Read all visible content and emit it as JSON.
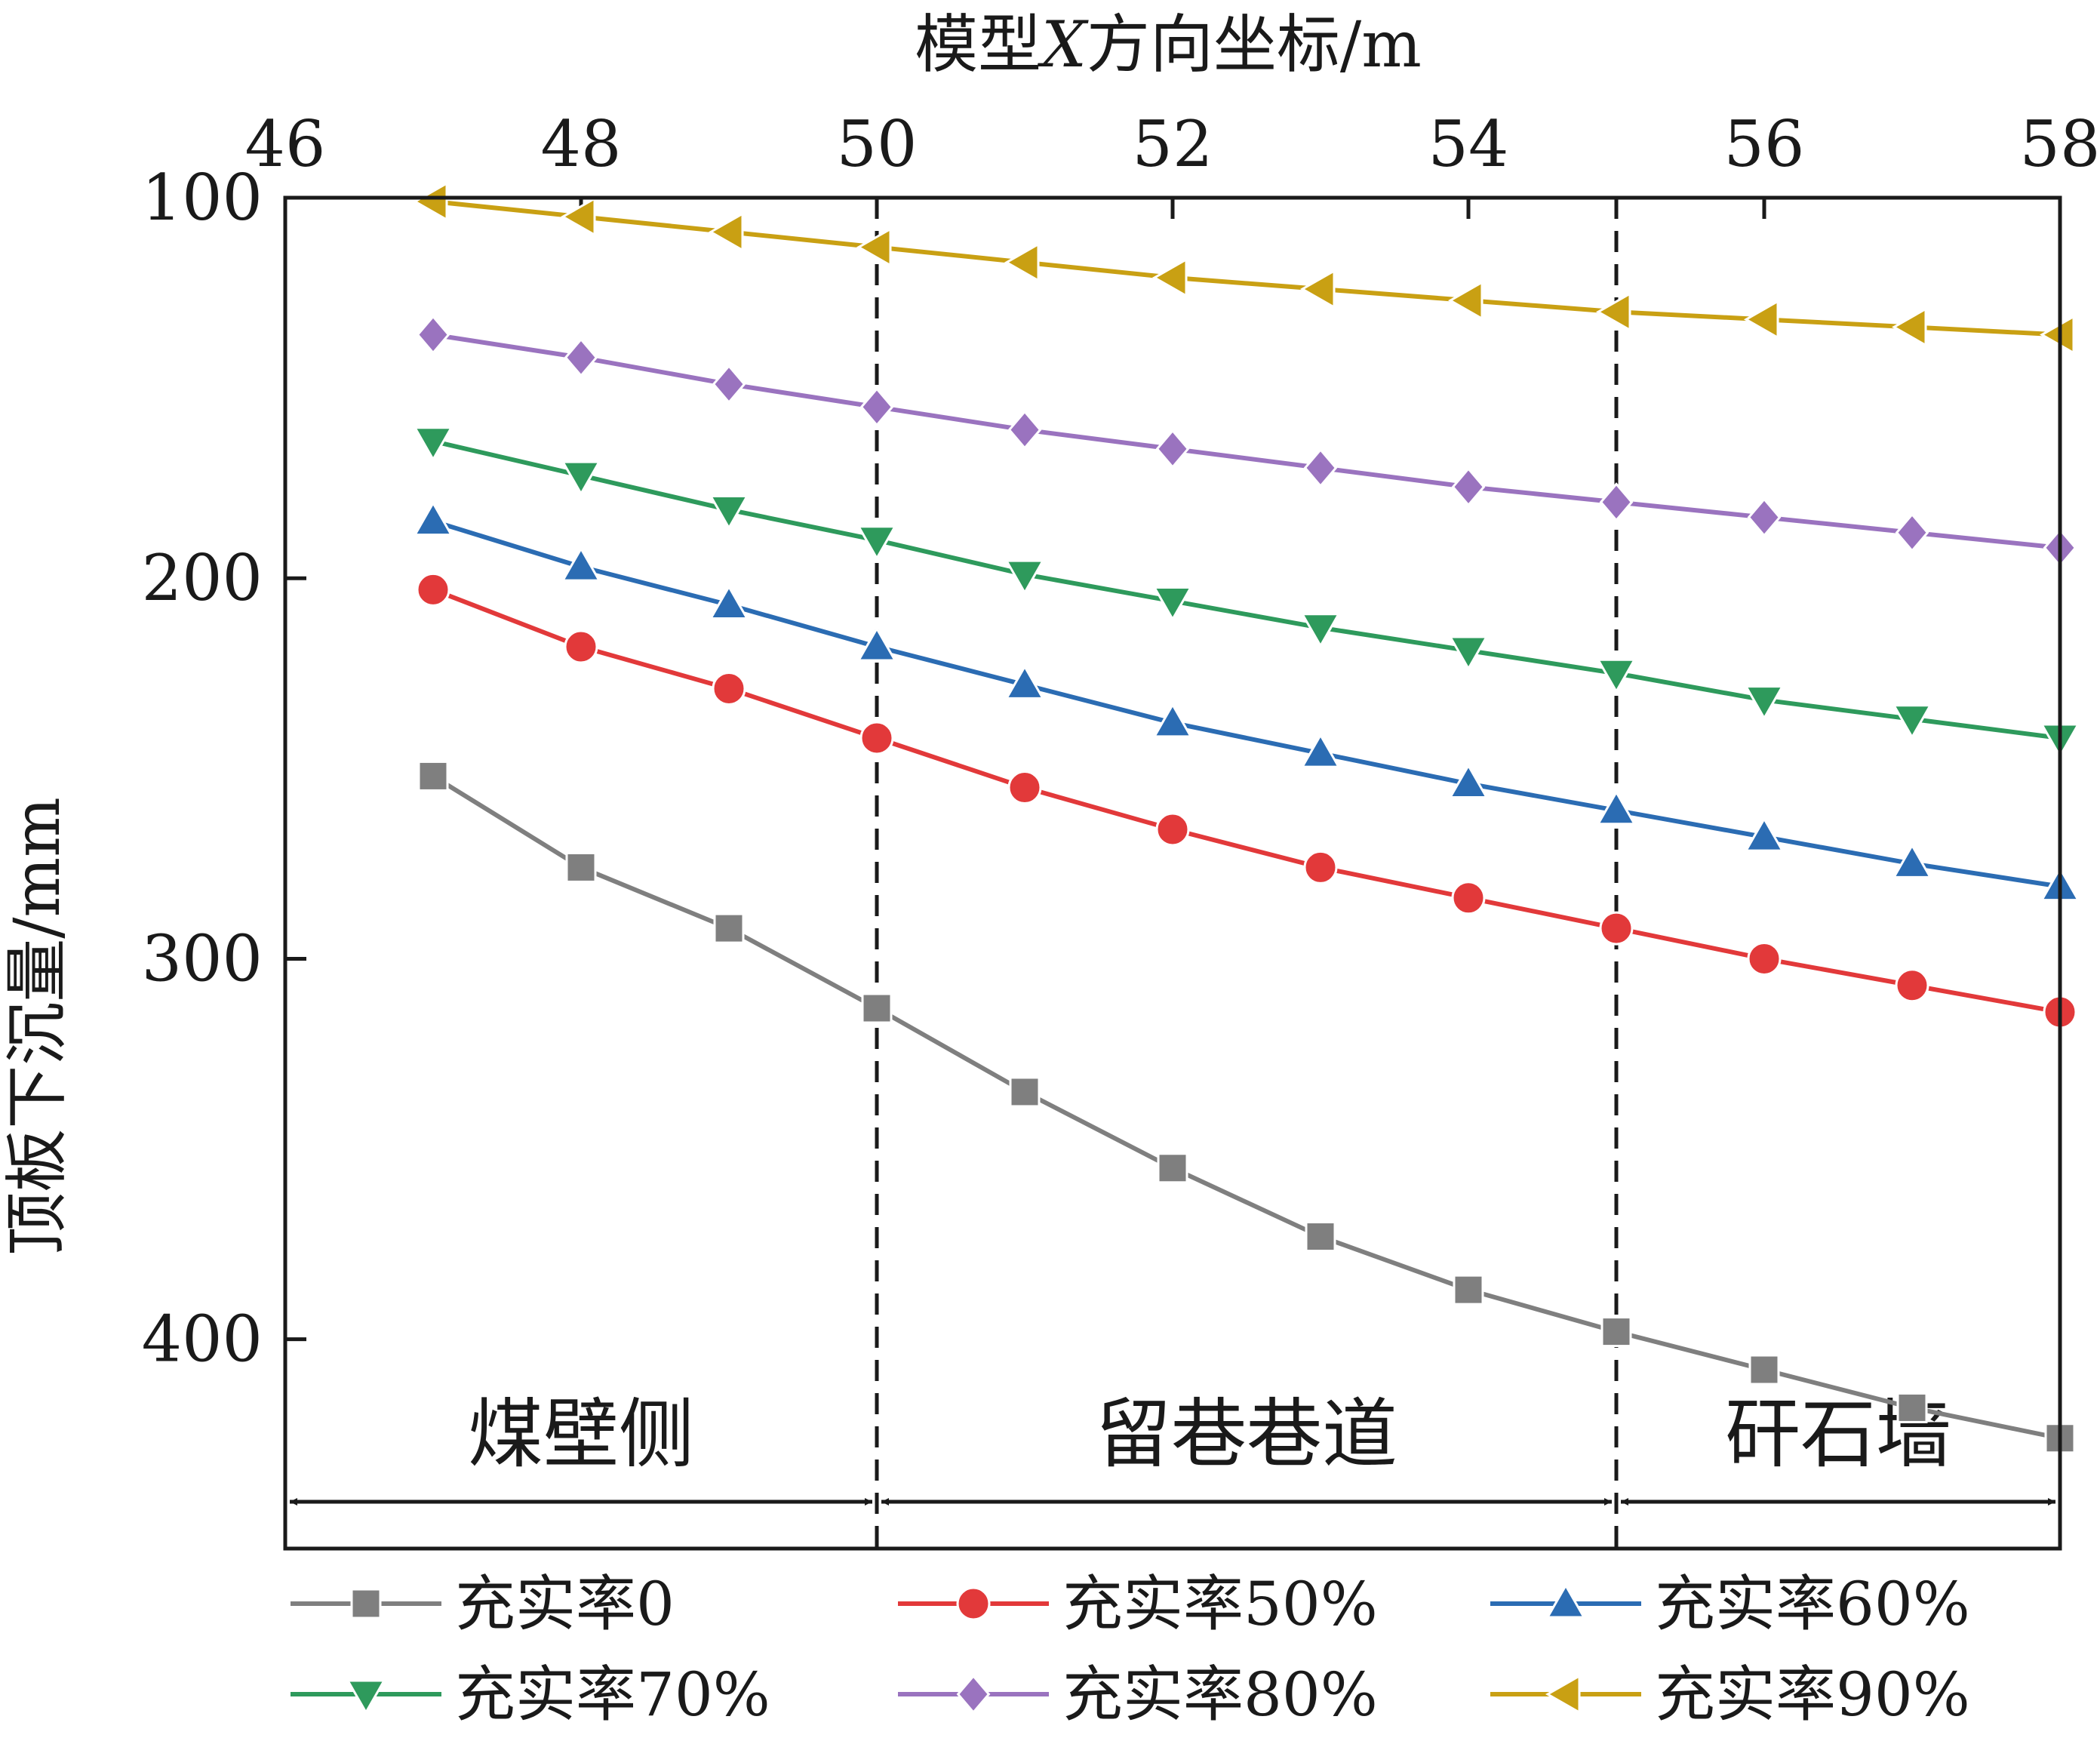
{
  "chart_data": {
    "type": "line",
    "xlabel": "模型X方向坐标/m",
    "xlabel_parts": [
      "模型",
      "X",
      "方向坐标/m"
    ],
    "ylabel": "顶板下沉量/mm",
    "xlim": [
      46,
      58
    ],
    "ylim": [
      100,
      455
    ],
    "y_inverted": true,
    "x_axis_position": "top",
    "x_ticks": [
      46,
      48,
      50,
      52,
      54,
      56,
      58
    ],
    "y_ticks": [
      100,
      200,
      300,
      400
    ],
    "x": [
      47,
      48,
      49,
      50,
      51,
      52,
      53,
      54,
      55,
      56,
      57,
      58
    ],
    "series": [
      {
        "name": "充实率0",
        "color": "#7f7f7f",
        "marker": "square",
        "values": [
          252,
          276,
          292,
          313,
          335,
          355,
          373,
          387,
          398,
          408,
          418,
          426
        ]
      },
      {
        "name": "充实率50%",
        "color": "#e2393a",
        "marker": "circle",
        "values": [
          203,
          218,
          229,
          242,
          255,
          266,
          276,
          284,
          292,
          300,
          307,
          314
        ]
      },
      {
        "name": "充实率60%",
        "color": "#2b6cb3",
        "marker": "triangle-up",
        "values": [
          185,
          197,
          207,
          218,
          228,
          238,
          246,
          254,
          261,
          268,
          275,
          281
        ]
      },
      {
        "name": "充实率70%",
        "color": "#2e9a5c",
        "marker": "triangle-down",
        "values": [
          164,
          173,
          182,
          190,
          199,
          206,
          213,
          219,
          225,
          232,
          237,
          242
        ]
      },
      {
        "name": "充实率80%",
        "color": "#9a73bf",
        "marker": "diamond",
        "values": [
          136,
          142,
          149,
          155,
          161,
          166,
          171,
          176,
          180,
          184,
          188,
          192
        ]
      },
      {
        "name": "充实率90%",
        "color": "#c9a013",
        "marker": "triangle-left",
        "values": [
          101,
          105,
          109,
          113,
          117,
          121,
          124,
          127,
          130,
          132,
          134,
          136
        ]
      }
    ],
    "region_dividers_x": [
      50,
      55
    ],
    "regions": [
      {
        "label": "煤壁侧",
        "from": 46,
        "to": 50
      },
      {
        "label": "留巷巷道",
        "from": 50,
        "to": 55
      },
      {
        "label": "矸石墙",
        "from": 55,
        "to": 58
      }
    ],
    "legend": "bottom, 3 columns"
  }
}
